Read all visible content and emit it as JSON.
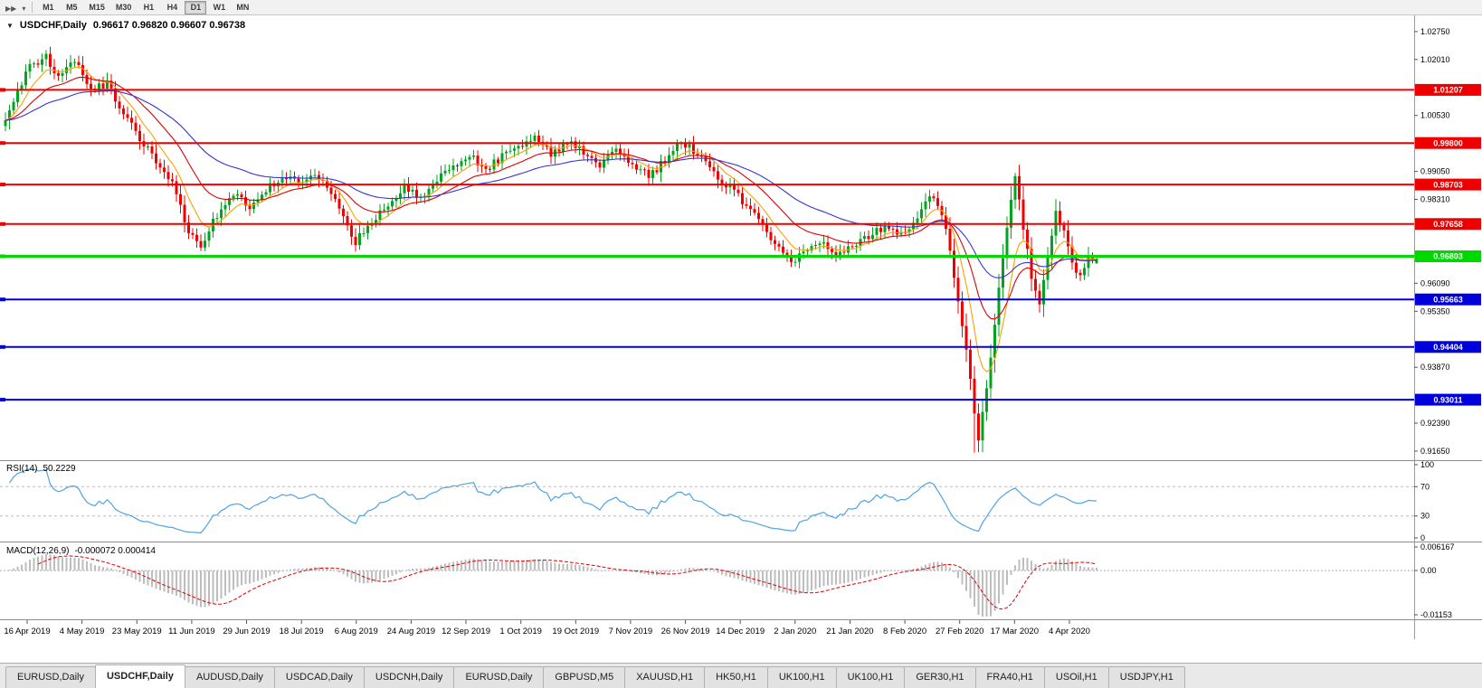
{
  "toolbar": {
    "left_icons": [
      {
        "name": "chart-scroll-icon",
        "glyph": "▶▶"
      },
      {
        "name": "chart-dropdown-icon",
        "glyph": "▾"
      }
    ],
    "timeframes": [
      "M1",
      "M5",
      "M15",
      "M30",
      "H1",
      "H4",
      "D1",
      "W1",
      "MN"
    ],
    "active_timeframe": "D1"
  },
  "chart": {
    "collapse_arrow": "▼",
    "title": "USDCHF,Daily",
    "ohlc_text": "0.96617  0.96820  0.96607  0.96738"
  },
  "rsi_panel": {
    "name": "RSI(14)",
    "value": "50.2229"
  },
  "macd_panel": {
    "name": "MACD(12,26,9)",
    "value": "-0.000072 0.000414"
  },
  "tabs": {
    "active_index": 1,
    "items": [
      "EURUSD,Daily",
      "USDCHF,Daily",
      "AUDUSD,Daily",
      "USDCAD,Daily",
      "USDCNH,Daily",
      "EURUSD,Daily",
      "GBPUSD,M5",
      "XAUUSD,H1",
      "HK50,H1",
      "UK100,H1",
      "UK100,H1",
      "GER30,H1",
      "FRA40,H1",
      "USOil,H1",
      "USDJPY,H1"
    ]
  },
  "chart_data": {
    "type": "candlestick",
    "symbol": "USDCHF",
    "period": "Daily",
    "last_ohlc": {
      "open": 0.96617,
      "high": 0.9682,
      "low": 0.96607,
      "close": 0.96738
    },
    "colors": {
      "bull": "#00a41e",
      "bear": "#f20000",
      "ma_fast": "#ff9f00",
      "ma_mid": "#dd0000",
      "ma_slow": "#3535cf",
      "rsi_line": "#4fa3e3",
      "rsi_level": "#bcbcbc",
      "macd_bar": "#bdbdbd",
      "macd_signal": "#e00000",
      "resistance": "#ee0000",
      "support": "#0000dd",
      "current": "#00d800",
      "separator": "#8c8c8c",
      "axis_text": "#000000"
    },
    "y_axis": {
      "top": 1.0313,
      "bottom": 0.9141,
      "ticks": [
        1.0275,
        1.0201,
        1.0127,
        1.0053,
        0.9979,
        0.9905,
        0.9831,
        0.9757,
        0.9683,
        0.9609,
        0.9535,
        0.9461,
        0.9387,
        0.9313,
        0.9239,
        0.9165
      ]
    },
    "dates": [
      "16 Apr 2019",
      "4 May 2019",
      "23 May 2019",
      "11 Jun 2019",
      "29 Jun 2019",
      "18 Jul 2019",
      "6 Aug 2019",
      "24 Aug 2019",
      "12 Sep 2019",
      "1 Oct 2019",
      "19 Oct 2019",
      "7 Nov 2019",
      "26 Nov 2019",
      "14 Dec 2019",
      "2 Jan 2020",
      "21 Jan 2020",
      "8 Feb 2020",
      "27 Feb 2020",
      "17 Mar 2020",
      "4 Apr 2020"
    ],
    "horizontal_lines": [
      {
        "value": 1.01207,
        "label": "1.01207",
        "type": "resistance"
      },
      {
        "value": 0.998,
        "label": "0.99800",
        "type": "resistance"
      },
      {
        "value": 0.98703,
        "label": "0.98703",
        "type": "resistance"
      },
      {
        "value": 0.97658,
        "label": "0.97658",
        "type": "resistance"
      },
      {
        "value": 0.96803,
        "label": "0.96803",
        "type": "current"
      },
      {
        "value": 0.95663,
        "label": "0.95663",
        "type": "support"
      },
      {
        "value": 0.94404,
        "label": "0.94404",
        "type": "support"
      },
      {
        "value": 0.93011,
        "label": "0.93011",
        "type": "support"
      }
    ],
    "num_candles": 269,
    "noise_amplitude": 0.0011,
    "close_path_anchors": [
      [
        0,
        1.004
      ],
      [
        3,
        1.012
      ],
      [
        6,
        1.018
      ],
      [
        10,
        1.0205
      ],
      [
        13,
        1.016
      ],
      [
        17,
        1.0195
      ],
      [
        21,
        1.012
      ],
      [
        25,
        1.0135
      ],
      [
        29,
        1.006
      ],
      [
        33,
        0.999
      ],
      [
        37,
        0.9935
      ],
      [
        41,
        0.988
      ],
      [
        45,
        0.9745
      ],
      [
        48,
        0.9705
      ],
      [
        52,
        0.979
      ],
      [
        56,
        0.9845
      ],
      [
        60,
        0.9815
      ],
      [
        64,
        0.9855
      ],
      [
        68,
        0.9895
      ],
      [
        72,
        0.987
      ],
      [
        76,
        0.9905
      ],
      [
        80,
        0.985
      ],
      [
        84,
        0.9755
      ],
      [
        86,
        0.972
      ],
      [
        90,
        0.977
      ],
      [
        94,
        0.982
      ],
      [
        98,
        0.986
      ],
      [
        102,
        0.984
      ],
      [
        106,
        0.9885
      ],
      [
        110,
        0.992
      ],
      [
        114,
        0.995
      ],
      [
        118,
        0.991
      ],
      [
        122,
        0.9945
      ],
      [
        126,
        0.9975
      ],
      [
        130,
        0.9995
      ],
      [
        134,
        0.995
      ],
      [
        138,
        0.9985
      ],
      [
        142,
        0.9955
      ],
      [
        146,
        0.992
      ],
      [
        150,
        0.996
      ],
      [
        154,
        0.9925
      ],
      [
        158,
        0.989
      ],
      [
        162,
        0.9935
      ],
      [
        166,
        0.9985
      ],
      [
        170,
        0.995
      ],
      [
        174,
        0.99
      ],
      [
        178,
        0.986
      ],
      [
        182,
        0.9815
      ],
      [
        186,
        0.9755
      ],
      [
        190,
        0.97
      ],
      [
        193,
        0.9655
      ],
      [
        196,
        0.969
      ],
      [
        200,
        0.9725
      ],
      [
        204,
        0.9685
      ],
      [
        208,
        0.9705
      ],
      [
        212,
        0.9735
      ],
      [
        216,
        0.976
      ],
      [
        220,
        0.9735
      ],
      [
        224,
        0.9775
      ],
      [
        227,
        0.984
      ],
      [
        230,
        0.9795
      ],
      [
        232,
        0.97
      ],
      [
        234,
        0.9565
      ],
      [
        236,
        0.943
      ],
      [
        238,
        0.927
      ],
      [
        239,
        0.919
      ],
      [
        241,
        0.933
      ],
      [
        243,
        0.95
      ],
      [
        245,
        0.968
      ],
      [
        247,
        0.984
      ],
      [
        248,
        0.9885
      ],
      [
        250,
        0.976
      ],
      [
        252,
        0.962
      ],
      [
        254,
        0.956
      ],
      [
        256,
        0.9675
      ],
      [
        258,
        0.979
      ],
      [
        260,
        0.975
      ],
      [
        262,
        0.9655
      ],
      [
        264,
        0.9625
      ],
      [
        266,
        0.968
      ],
      [
        268,
        0.9674
      ]
    ],
    "wick_overrides": [
      {
        "i": 10,
        "high": 1.0226
      },
      {
        "i": 238,
        "low": 0.9161
      },
      {
        "i": 248,
        "high": 0.9901
      }
    ],
    "moving_averages": [
      {
        "period": 8,
        "color_key": "ma_fast"
      },
      {
        "period": 20,
        "color_key": "ma_mid"
      },
      {
        "period": 45,
        "color_key": "ma_slow"
      }
    ],
    "indicators": {
      "rsi": {
        "period": 14,
        "current": 50.2229,
        "levels": [
          70,
          30
        ],
        "axis_ticks": [
          100,
          70,
          30,
          0
        ]
      },
      "macd": {
        "fast": 12,
        "slow": 26,
        "signal": 9,
        "current_macd": -7.2e-05,
        "current_signal": 0.000414,
        "axis_ticks": [
          {
            "value": 0.006167,
            "label": "0.006167"
          },
          {
            "value": 0,
            "label": "0.00"
          },
          {
            "value": -0.01153,
            "label": "-0.01153"
          }
        ]
      }
    }
  }
}
